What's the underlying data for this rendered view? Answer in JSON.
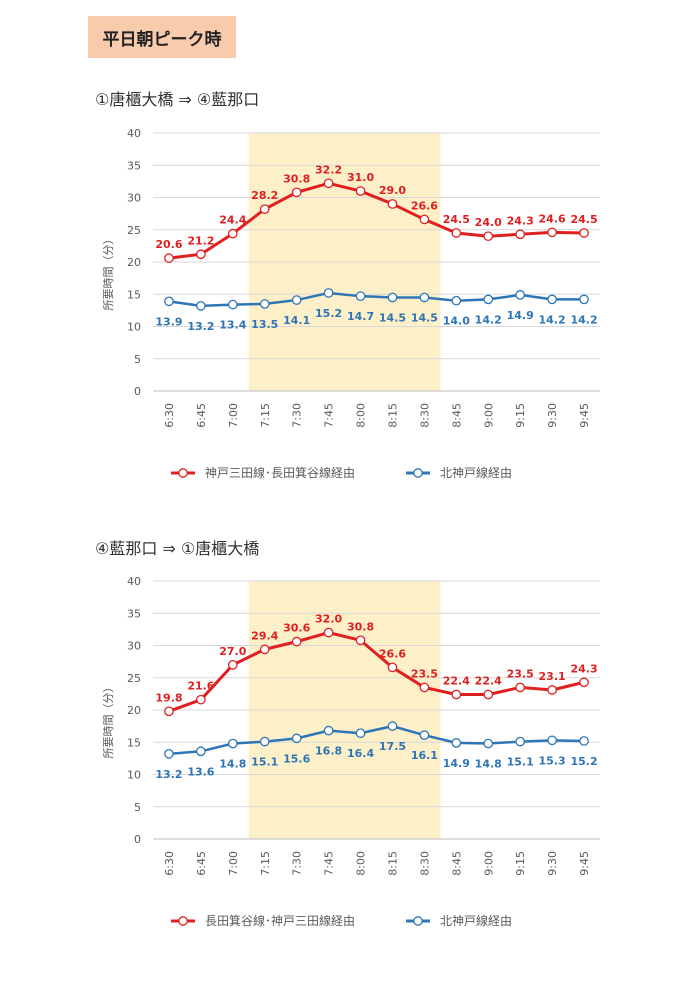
{
  "header": {
    "title": "平日朝ピーク時"
  },
  "colors": {
    "red": "#e02020",
    "blue": "#2e75b6",
    "highlight": "#fdefc8",
    "grid": "#d9d9d9"
  },
  "chart_data": [
    {
      "type": "line",
      "title": "①唐櫃大橋 ⇒ ④藍那口",
      "ylabel": "所要時間（分）",
      "ylim": [
        0,
        40
      ],
      "yticks": [
        0,
        5,
        10,
        15,
        20,
        25,
        30,
        35,
        40
      ],
      "categories": [
        "6:30",
        "6:45",
        "7:00",
        "7:15",
        "7:30",
        "7:45",
        "8:00",
        "8:15",
        "8:30",
        "8:45",
        "9:00",
        "9:15",
        "9:30",
        "9:45"
      ],
      "highlight_range": [
        "7:15",
        "8:30"
      ],
      "legend_position": "bottom",
      "series": [
        {
          "name": "神戸三田線･長田箕谷線経由",
          "color": "#e02020",
          "values": [
            20.6,
            21.2,
            24.4,
            28.2,
            30.8,
            32.2,
            31.0,
            29.0,
            26.6,
            24.5,
            24.0,
            24.3,
            24.6,
            24.5
          ],
          "labels": [
            "20.6",
            "21.2",
            "24.4",
            "28.2",
            "30.8",
            "32.2",
            "31.0",
            "29.0",
            "26.6",
            "24.5",
            "24.0",
            "24.3",
            "24.6",
            "24.5"
          ]
        },
        {
          "name": "北神戸線経由",
          "color": "#2e75b6",
          "values": [
            13.9,
            13.2,
            13.4,
            13.5,
            14.1,
            15.2,
            14.7,
            14.5,
            14.5,
            14.0,
            14.2,
            14.9,
            14.2,
            14.2
          ],
          "labels": [
            "13.9",
            "13.2",
            "13.4",
            "13.5",
            "14.1",
            "15.2",
            "14.7",
            "14.5",
            "14.5",
            "14.0",
            "14.2",
            "14.9",
            "14.2",
            "14.2"
          ]
        }
      ]
    },
    {
      "type": "line",
      "title": "④藍那口 ⇒ ①唐櫃大橋",
      "ylabel": "所要時間（分）",
      "ylim": [
        0,
        40
      ],
      "yticks": [
        0,
        5,
        10,
        15,
        20,
        25,
        30,
        35,
        40
      ],
      "categories": [
        "6:30",
        "6:45",
        "7:00",
        "7:15",
        "7:30",
        "7:45",
        "8:00",
        "8:15",
        "8:30",
        "8:45",
        "9:00",
        "9:15",
        "9:30",
        "9:45"
      ],
      "highlight_range": [
        "7:15",
        "8:30"
      ],
      "legend_position": "bottom",
      "series": [
        {
          "name": "長田箕谷線･神戸三田線経由",
          "color": "#e02020",
          "values": [
            19.8,
            21.6,
            27.0,
            29.4,
            30.6,
            32.0,
            30.8,
            26.6,
            23.5,
            22.4,
            22.4,
            23.5,
            23.1,
            24.3
          ],
          "labels": [
            "19.8",
            "21.6",
            "27.0",
            "29.4",
            "30.6",
            "32.0",
            "30.8",
            "26.6",
            "23.5",
            "22.4",
            "22.4",
            "23.5",
            "23.1",
            "24.3"
          ]
        },
        {
          "name": "北神戸線経由",
          "color": "#2e75b6",
          "values": [
            13.2,
            13.6,
            14.8,
            15.1,
            15.6,
            16.8,
            16.4,
            17.5,
            16.1,
            14.9,
            14.8,
            15.1,
            15.3,
            15.2
          ],
          "labels": [
            "13.2",
            "13.6",
            "14.8",
            "15.1",
            "15.6",
            "16.8",
            "16.4",
            "17.5",
            "16.1",
            "14.9",
            "14.8",
            "15.1",
            "15.3",
            "15.2"
          ]
        }
      ]
    }
  ]
}
